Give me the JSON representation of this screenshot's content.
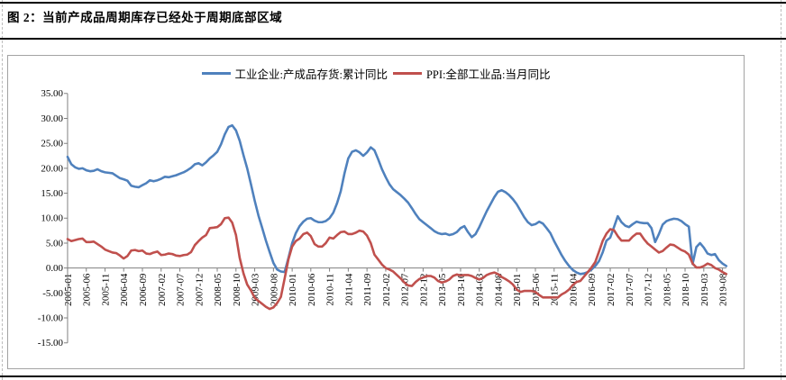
{
  "header": {
    "figure_title": "图 2：当前产成品周期库存已经处于周期底部区域"
  },
  "chart_data": {
    "type": "line",
    "title": "图 2：当前产成品周期库存已经处于周期底部区域",
    "xlabel": "",
    "ylabel": "",
    "x_start": "2005-01",
    "x_end": "2019-09",
    "x_interval": "monthly",
    "ylim": [
      -15,
      35
    ],
    "grid": false,
    "legend_position": "top-center",
    "axis_color": "#808080",
    "x_tick_labels": [
      "2005-01",
      "2005-06",
      "2005-11",
      "2006-04",
      "2006-09",
      "2007-02",
      "2007-07",
      "2007-12",
      "2008-05",
      "2008-10",
      "2009-03",
      "2009-08",
      "2010-01",
      "2010-06",
      "2010-11",
      "2011-04",
      "2011-09",
      "2012-02",
      "2012-07",
      "2012-12",
      "2013-05",
      "2013-10",
      "2014-03",
      "2014-08",
      "2015-01",
      "2015-06",
      "2015-11",
      "2016-04",
      "2016-09",
      "2017-02",
      "2017-07",
      "2017-12",
      "2018-05",
      "2018-10",
      "2019-03",
      "2019-08"
    ],
    "x_tick_month_step": 5,
    "y_tick_values": [
      35,
      30,
      25,
      20,
      15,
      10,
      5,
      0,
      -5,
      -10,
      -15
    ],
    "y_tick_labels": [
      "35.00",
      "30.00",
      "25.00",
      "20.00",
      "15.00",
      "10.00",
      "5.00",
      "0.00",
      "-5.00",
      "-10.00",
      "-15.00"
    ],
    "series": [
      {
        "name": "工业企业:产成品存货:累计同比",
        "color": "#4f81bd",
        "values": [
          22.3,
          20.8,
          20.2,
          19.9,
          20.0,
          19.6,
          19.4,
          19.5,
          19.8,
          19.4,
          19.2,
          19.1,
          19.0,
          18.5,
          18.0,
          17.8,
          17.5,
          16.5,
          16.3,
          16.2,
          16.6,
          17.0,
          17.6,
          17.4,
          17.6,
          17.9,
          18.3,
          18.2,
          18.4,
          18.6,
          18.9,
          19.2,
          19.6,
          20.1,
          20.8,
          21.0,
          20.6,
          21.2,
          22.0,
          22.6,
          23.3,
          24.8,
          26.8,
          28.3,
          28.6,
          27.6,
          25.5,
          22.6,
          20.0,
          16.8,
          13.5,
          10.5,
          8.0,
          5.5,
          3.2,
          1.0,
          -0.3,
          -0.7,
          -0.8,
          2.0,
          5.0,
          7.0,
          8.4,
          9.3,
          9.9,
          10.0,
          9.5,
          9.2,
          9.2,
          9.4,
          10.0,
          11.1,
          13.0,
          15.4,
          19.0,
          22.0,
          23.3,
          23.6,
          23.2,
          22.5,
          23.2,
          24.2,
          23.6,
          21.8,
          19.8,
          18.2,
          16.8,
          15.8,
          15.2,
          14.6,
          13.9,
          13.1,
          12.0,
          10.8,
          9.8,
          9.2,
          8.6,
          8.0,
          7.4,
          7.0,
          6.8,
          6.9,
          6.6,
          6.8,
          7.2,
          8.0,
          8.4,
          7.2,
          6.2,
          6.8,
          8.2,
          9.8,
          11.4,
          12.8,
          14.2,
          15.3,
          15.6,
          15.2,
          14.6,
          13.8,
          12.8,
          11.5,
          10.2,
          9.2,
          8.6,
          8.8,
          9.3,
          8.9,
          8.0,
          7.0,
          5.4,
          4.0,
          2.6,
          1.4,
          0.4,
          -0.4,
          -0.9,
          -1.2,
          -1.1,
          -0.8,
          -0.3,
          0.4,
          1.4,
          3.2,
          5.5,
          6.1,
          8.2,
          10.4,
          9.2,
          8.5,
          8.2,
          8.8,
          9.3,
          9.1,
          9.0,
          9.0,
          8.0,
          5.2,
          6.8,
          8.7,
          9.4,
          9.7,
          9.9,
          9.8,
          9.4,
          8.8,
          8.3,
          0.8,
          4.2,
          5.0,
          4.1,
          2.9,
          2.6,
          2.8,
          1.6,
          0.9,
          0.4
        ]
      },
      {
        "name": "PPI:全部工业品:当月同比",
        "color": "#c0504d",
        "values": [
          5.8,
          5.4,
          5.6,
          5.8,
          5.9,
          5.2,
          5.2,
          5.3,
          4.8,
          4.3,
          3.7,
          3.4,
          3.1,
          3.0,
          2.5,
          1.9,
          2.4,
          3.5,
          3.6,
          3.4,
          3.5,
          2.9,
          2.8,
          3.1,
          3.3,
          2.6,
          2.7,
          2.9,
          2.8,
          2.5,
          2.4,
          2.6,
          2.7,
          3.2,
          4.6,
          5.4,
          6.1,
          6.6,
          8.0,
          8.1,
          8.2,
          8.8,
          10.0,
          10.1,
          9.1,
          6.6,
          2.0,
          -1.1,
          -3.3,
          -4.5,
          -6.0,
          -6.6,
          -7.2,
          -7.8,
          -8.2,
          -7.9,
          -7.0,
          -5.8,
          -2.1,
          1.7,
          4.3,
          5.4,
          5.9,
          6.8,
          7.1,
          6.4,
          4.8,
          4.3,
          4.3,
          5.0,
          6.1,
          5.9,
          6.6,
          7.2,
          7.3,
          6.8,
          6.8,
          7.1,
          7.5,
          7.3,
          6.5,
          5.0,
          2.7,
          1.7,
          0.7,
          0.0,
          -0.3,
          -0.7,
          -1.4,
          -2.1,
          -2.9,
          -3.5,
          -3.6,
          -2.8,
          -2.2,
          -1.9,
          -1.6,
          -1.6,
          -1.9,
          -2.6,
          -2.9,
          -2.7,
          -2.3,
          -1.6,
          -1.3,
          -1.5,
          -1.4,
          -1.4,
          -1.6,
          -2.0,
          -2.3,
          -2.0,
          -1.4,
          -1.1,
          -0.9,
          -1.2,
          -1.8,
          -2.2,
          -2.7,
          -3.3,
          -4.3,
          -4.8,
          -4.6,
          -4.6,
          -4.6,
          -4.8,
          -5.4,
          -5.9,
          -5.9,
          -5.9,
          -5.9,
          -5.9,
          -5.3,
          -4.9,
          -4.3,
          -3.4,
          -2.8,
          -2.6,
          -1.7,
          -0.8,
          0.1,
          1.2,
          3.3,
          5.5,
          6.9,
          7.8,
          7.6,
          6.4,
          5.5,
          5.5,
          5.5,
          6.3,
          6.9,
          6.9,
          5.8,
          4.9,
          4.3,
          3.7,
          3.1,
          3.4,
          4.1,
          4.7,
          4.6,
          4.1,
          3.6,
          3.3,
          2.7,
          0.9,
          0.1,
          0.1,
          0.4,
          0.9,
          0.6,
          0.0,
          -0.3,
          -0.8,
          -1.2
        ]
      }
    ]
  }
}
